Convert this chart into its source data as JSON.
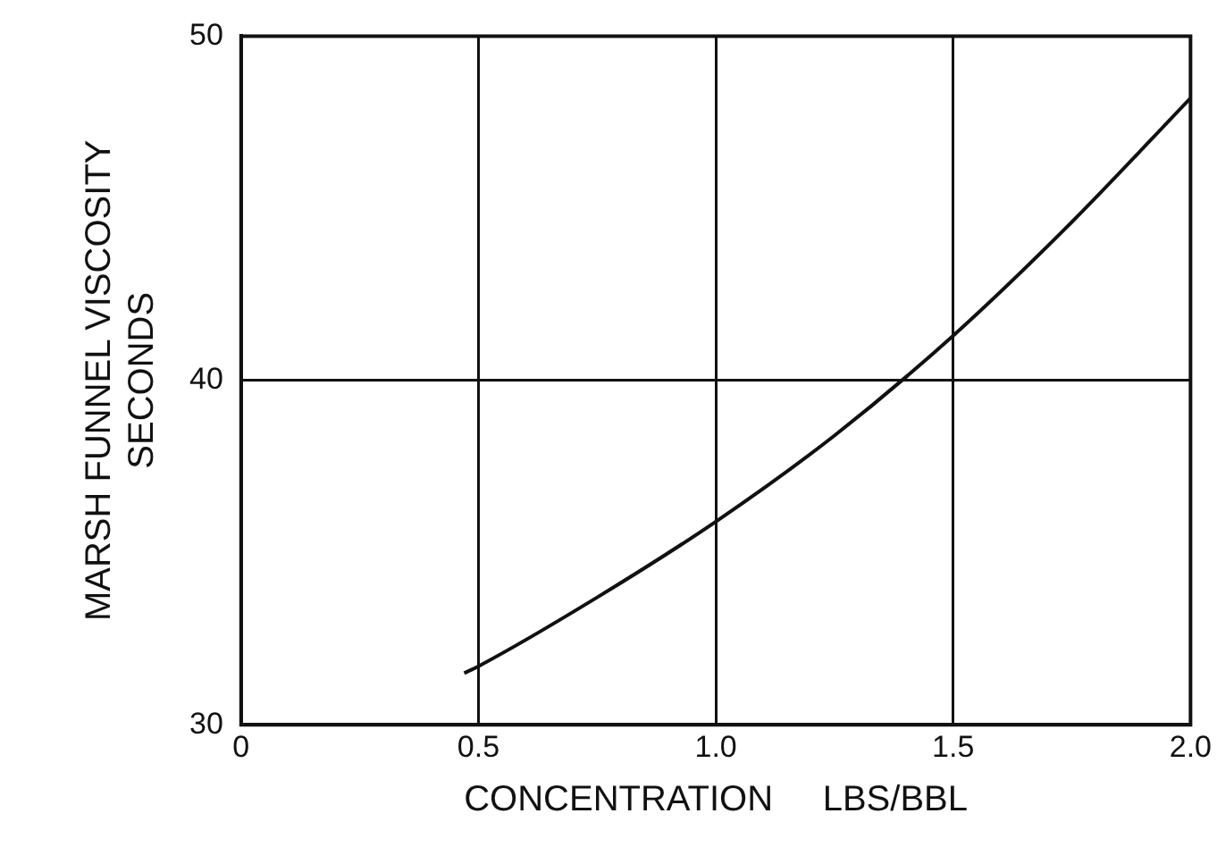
{
  "chart_data": {
    "type": "line",
    "xlabel": "CONCENTRATION     LBS/BBL",
    "ylabel": "MARSH FUNNEL VISCOSITY\nSECONDS",
    "x": [
      0.47,
      0.5,
      0.75,
      1.0,
      1.25,
      1.5,
      1.75,
      2.0
    ],
    "series": [
      {
        "color": "#111111",
        "values": [
          31.5,
          31.7,
          33.7,
          35.9,
          38.4,
          41.3,
          44.6,
          48.2
        ]
      }
    ],
    "xlim": [
      0,
      2.0
    ],
    "xticks": [
      {
        "value": 0,
        "label": "0"
      },
      0.5,
      {
        "value": 1,
        "label": "1.0"
      },
      1.5,
      {
        "value": 2,
        "label": "2.0"
      }
    ],
    "ylim": [
      30,
      50
    ],
    "yticks": [
      30,
      40,
      50
    ],
    "grid": true,
    "legend": false,
    "marker": "none",
    "line_style": "solid"
  }
}
